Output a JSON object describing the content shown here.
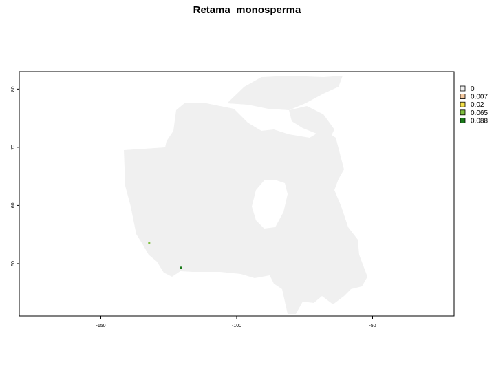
{
  "title": "Retama_monosperma",
  "map": {
    "extent": {
      "lon": [
        -180,
        -20
      ],
      "lat": [
        41,
        83
      ]
    },
    "base_fill": "#f0f0f0",
    "frame_color": "#000000",
    "x_ticks": [
      {
        "value": -150,
        "label": "-150"
      },
      {
        "value": -100,
        "label": "-100"
      },
      {
        "value": -50,
        "label": "-50"
      }
    ],
    "y_ticks": [
      {
        "value": 50,
        "label": "50"
      },
      {
        "value": 60,
        "label": "60"
      },
      {
        "value": 70,
        "label": "70"
      },
      {
        "value": 80,
        "label": "80"
      }
    ]
  },
  "legend": {
    "items": [
      {
        "label": "0",
        "color": "#f0f0f0"
      },
      {
        "label": "0.007",
        "color": "#f4c9a0"
      },
      {
        "label": "0.02",
        "color": "#f4e04a"
      },
      {
        "label": "0.065",
        "color": "#7fbf3f"
      },
      {
        "label": "0.088",
        "color": "#1a7a1a"
      }
    ]
  },
  "occurrences": [
    {
      "lon": -132.2,
      "lat": 53.5,
      "value": "0.065",
      "color": "#7fbf3f"
    },
    {
      "lon": -120.4,
      "lat": 49.3,
      "value": "0.088",
      "color": "#1a7a1a"
    }
  ]
}
